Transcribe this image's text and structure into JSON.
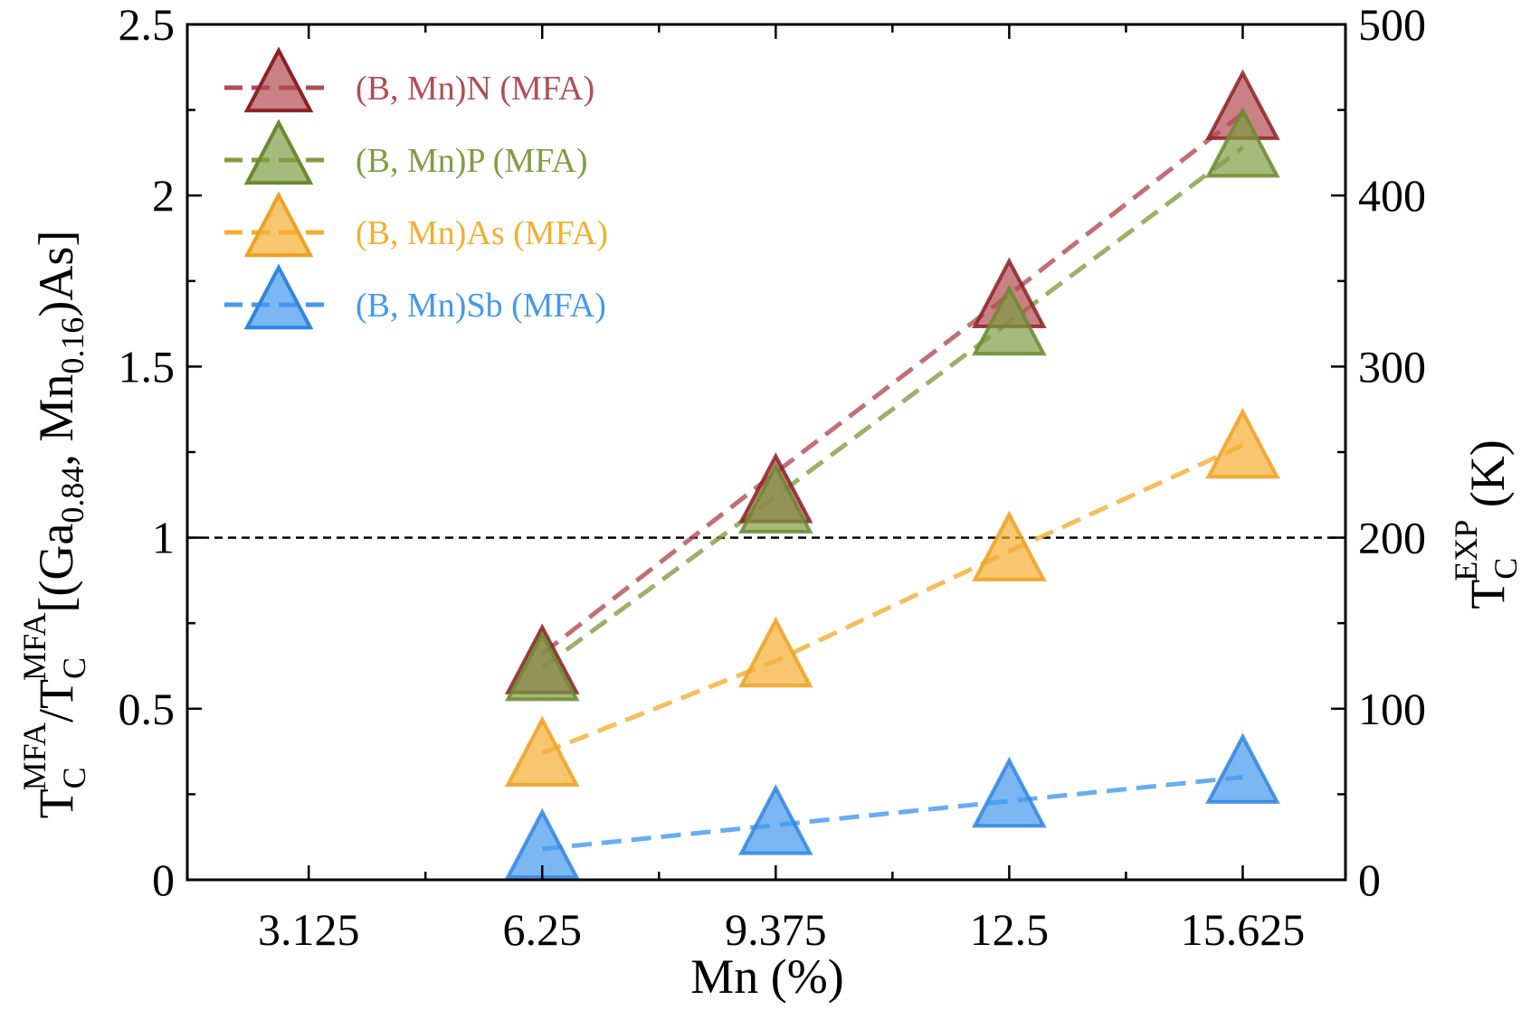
{
  "chart_data": {
    "type": "line",
    "x": [
      6.25,
      9.375,
      12.5,
      15.625
    ],
    "x_ticks": [
      "3.125",
      "6.25",
      "9.375",
      "12.5",
      "15.625"
    ],
    "x_tick_values": [
      3.125,
      6.25,
      9.375,
      12.5,
      15.625
    ],
    "xlim": [
      1.5,
      17.0
    ],
    "ylim": [
      0,
      2.5
    ],
    "y_ticks": [
      "0",
      "0.5",
      "1",
      "1.5",
      "2",
      "2.5"
    ],
    "y_tick_values": [
      0,
      0.5,
      1,
      1.5,
      2,
      2.5
    ],
    "y2lim": [
      0,
      500
    ],
    "y2_ticks": [
      "0",
      "100",
      "200",
      "300",
      "400",
      "500"
    ],
    "y2_tick_values": [
      0,
      100,
      200,
      300,
      400,
      500
    ],
    "xlabel": "Mn (%)",
    "ylabel": {
      "T1": "T",
      "sub1": "C",
      "sup1": "MFA",
      "slash": "/",
      "T2": "T",
      "sub2": "C",
      "sup2": "MFA",
      "part_a": "[(Ga",
      "sub_ga": "0.84",
      "part_b": ", Mn",
      "sub_mn": "0.16",
      "part_c": ")As]"
    },
    "y2label": {
      "T": "T",
      "sub": "C",
      "sup": "EXP",
      "unit": " (K)"
    },
    "reference_line": {
      "y": 1.0
    },
    "series": [
      {
        "name": "(B, Mn)N (MFA)",
        "color": "#b24c53",
        "stroke": "#8c2226",
        "values": [
          0.62,
          1.12,
          1.69,
          2.24
        ],
        "fit": [
          0.66,
          1.19,
          1.71,
          2.24
        ]
      },
      {
        "name": "(B, Mn)P (MFA)",
        "color": "#7f9d44",
        "stroke": "#6a8a30",
        "values": [
          0.6,
          1.09,
          1.61,
          2.13
        ],
        "fit": [
          0.62,
          1.12,
          1.63,
          2.14
        ]
      },
      {
        "name": "(B, Mn)As (MFA)",
        "color": "#f4ae32",
        "stroke": "#f0a020",
        "values": [
          0.35,
          0.64,
          0.95,
          1.25
        ],
        "fit": [
          0.37,
          0.64,
          0.96,
          1.27
        ]
      },
      {
        "name": "(B, Mn)Sb (MFA)",
        "color": "#4499ee",
        "stroke": "#2f86e0",
        "values": [
          0.08,
          0.15,
          0.23,
          0.3
        ],
        "fit": [
          0.09,
          0.16,
          0.23,
          0.3
        ]
      }
    ]
  }
}
